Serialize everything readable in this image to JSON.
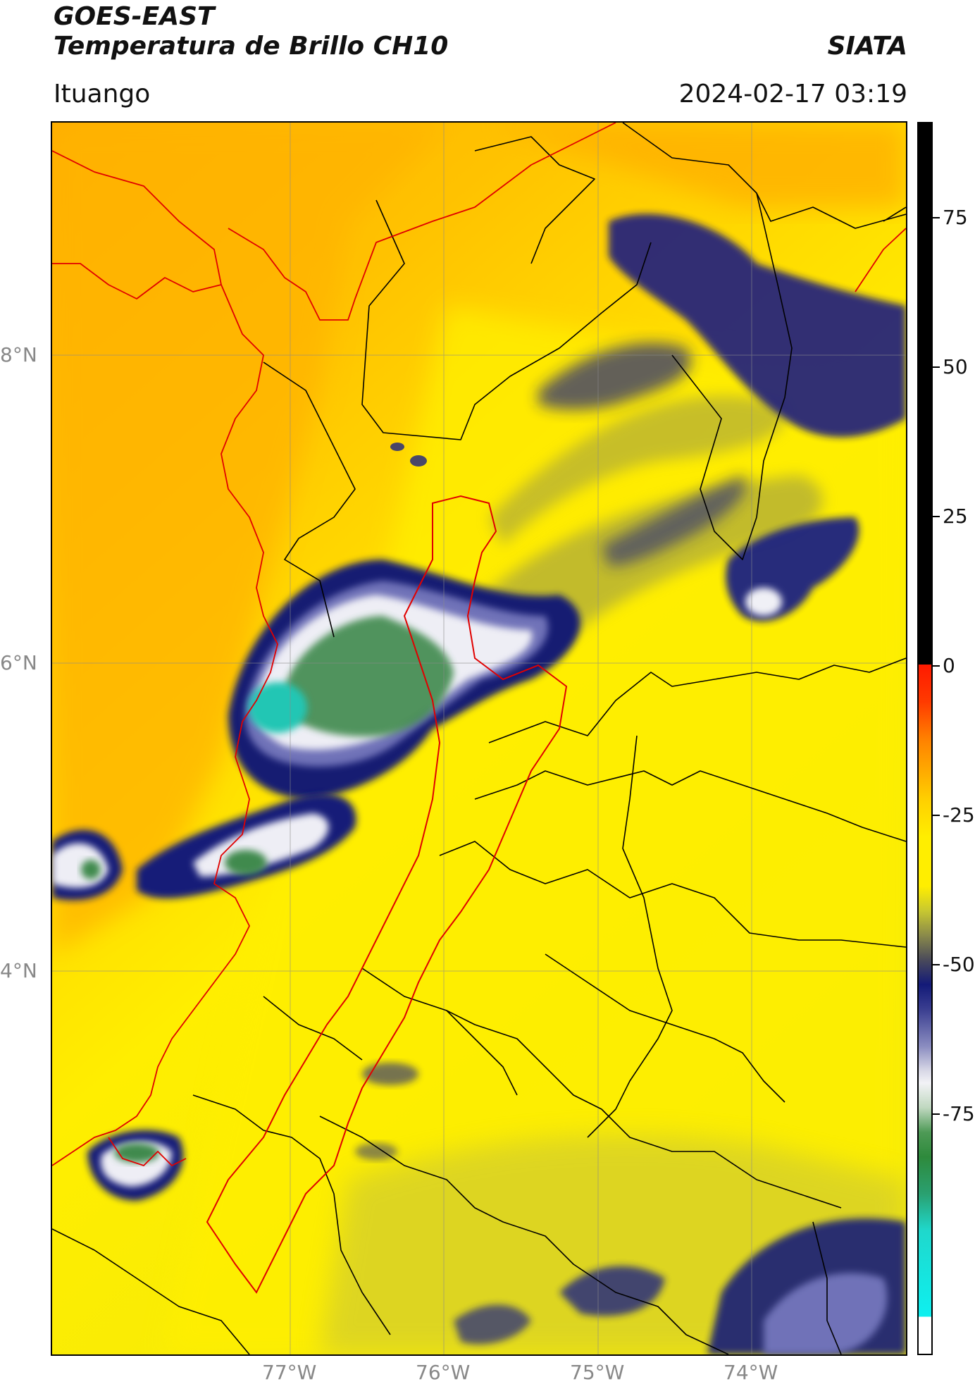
{
  "header": {
    "satellite": "GOES-EAST",
    "product": "Temperatura de Brillo CH10",
    "organization": "SIATA",
    "location": "Ituango",
    "timestamp": "2024-02-17 03:19"
  },
  "map": {
    "lat_labels": [
      "8°N",
      "6°N",
      "4°N"
    ],
    "lon_labels": [
      "77°W",
      "76°W",
      "75°W",
      "74°W"
    ]
  },
  "colorbar": {
    "ticks": [
      "75",
      "50",
      "25",
      "0",
      "-25",
      "-50",
      "-75"
    ],
    "colors": {
      "black": "#000000",
      "red": "#ff1a00",
      "orange": "#ffa000",
      "yellow": "#ffee00",
      "olive": "#9a9a4a",
      "navy": "#131a78",
      "white": "#f2f2f6",
      "green": "#2e8a3c",
      "cyan": "#1fd8cc"
    }
  }
}
